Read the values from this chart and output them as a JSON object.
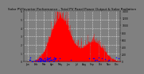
{
  "title": "Solar PV/Inverter Performance - Total PV Panel Power Output & Solar Radiation",
  "bg_color": "#808080",
  "plot_bg": "#808080",
  "grid_color": "#ffffff",
  "red_color": "#ff0000",
  "blue_color": "#0000ff",
  "ylim_left": [
    0,
    6
  ],
  "ylim_right": [
    0,
    1400
  ],
  "num_points": 365,
  "title_fontsize": 3.0,
  "tick_fontsize": 2.2,
  "left_yticks": [
    0,
    1,
    2,
    3,
    4,
    5,
    6
  ],
  "right_yticks": [
    0,
    200,
    400,
    600,
    800,
    1000,
    1200,
    1400
  ],
  "months": [
    "Jan",
    "Feb",
    "Mar",
    "Apr",
    "May",
    "Jun",
    "Jul",
    "Aug",
    "Sep",
    "Oct",
    "Nov",
    "Dec"
  ]
}
